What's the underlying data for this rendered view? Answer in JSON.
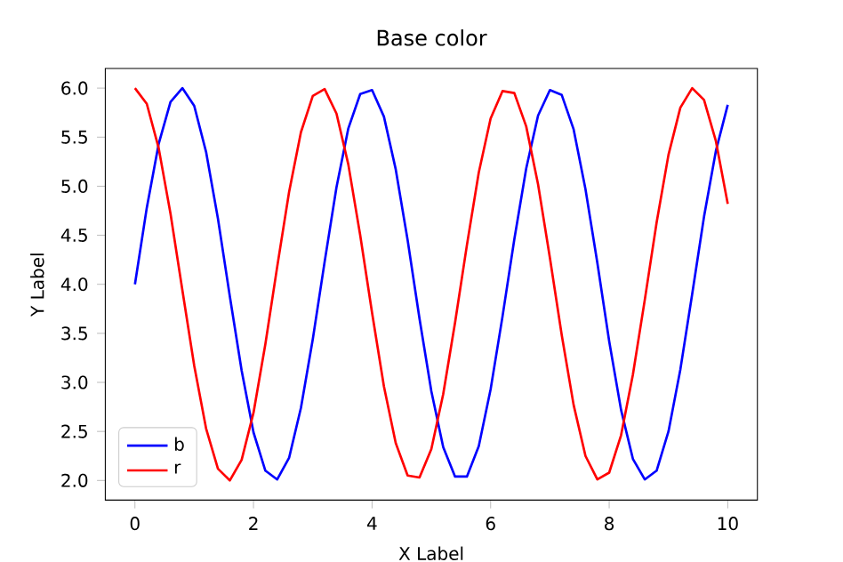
{
  "chart_data": {
    "type": "line",
    "title": "Base color",
    "xlabel": "X Label",
    "ylabel": "Y Label",
    "x": [
      0,
      0.2,
      0.4,
      0.6,
      0.8,
      1,
      1.2,
      1.4,
      1.6,
      1.8,
      2,
      2.2,
      2.4,
      2.6,
      2.8,
      3,
      3.2,
      3.4,
      3.6,
      3.8,
      4,
      4.2,
      4.4,
      4.6,
      4.8,
      5,
      5.2,
      5.4,
      5.6,
      5.8,
      6,
      6.2,
      6.4,
      6.6,
      6.8,
      7,
      7.2,
      7.4,
      7.6,
      7.8,
      8,
      8.2,
      8.4,
      8.6,
      8.8,
      9,
      9.2,
      9.4,
      9.6,
      9.8,
      10
    ],
    "series": [
      {
        "name": "b",
        "color": "#0000ff",
        "values": [
          4.0,
          4.78,
          5.43,
          5.86,
          6.0,
          5.82,
          5.35,
          4.67,
          3.88,
          3.12,
          2.49,
          2.1,
          2.01,
          2.23,
          2.74,
          3.44,
          4.23,
          4.99,
          5.59,
          5.94,
          5.98,
          5.71,
          5.17,
          4.45,
          3.65,
          2.91,
          2.34,
          2.04,
          2.04,
          2.35,
          2.93,
          3.67,
          4.46,
          5.18,
          5.72,
          5.98,
          5.93,
          5.58,
          4.97,
          4.22,
          3.42,
          2.72,
          2.22,
          2.01,
          2.1,
          2.5,
          3.13,
          3.9,
          4.69,
          5.36,
          5.83
        ]
      },
      {
        "name": "r",
        "color": "#ff0000",
        "values": [
          6.0,
          5.84,
          5.39,
          4.72,
          3.94,
          3.17,
          2.53,
          2.12,
          2.0,
          2.21,
          2.69,
          3.39,
          4.18,
          4.94,
          5.55,
          5.92,
          5.99,
          5.74,
          5.22,
          4.5,
          3.71,
          2.96,
          2.38,
          2.05,
          2.03,
          2.32,
          2.88,
          3.61,
          4.4,
          5.14,
          5.69,
          5.97,
          5.95,
          5.61,
          5.02,
          4.27,
          3.48,
          2.77,
          2.25,
          2.01,
          2.08,
          2.46,
          3.08,
          3.84,
          4.63,
          5.32,
          5.8,
          6.0,
          5.88,
          5.46,
          4.82
        ]
      }
    ],
    "xlim": [
      -0.5,
      10.5
    ],
    "ylim": [
      1.8,
      6.2
    ],
    "xticks": [
      0,
      2,
      4,
      6,
      8,
      10
    ],
    "yticks": [
      {
        "value": 2,
        "label": "2.0"
      },
      {
        "value": 2.5,
        "label": "2.5"
      },
      {
        "value": 3,
        "label": "3.0"
      },
      {
        "value": 3.5,
        "label": "3.5"
      },
      {
        "value": 4,
        "label": "4.0"
      },
      {
        "value": 4.5,
        "label": "4.5"
      },
      {
        "value": 5,
        "label": "5.0"
      },
      {
        "value": 5.5,
        "label": "5.5"
      },
      {
        "value": 6,
        "label": "6.0"
      }
    ],
    "legend": "bottom left",
    "marker": "none",
    "line_style": "solid",
    "grid": false
  }
}
